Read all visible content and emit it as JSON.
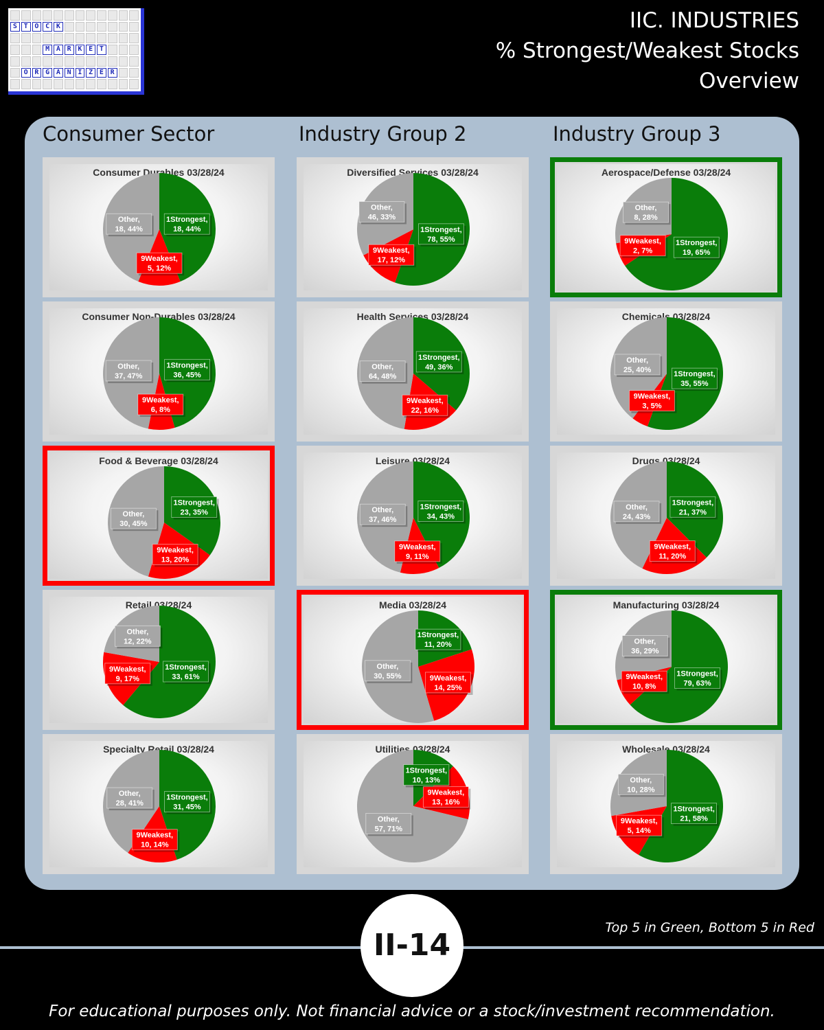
{
  "header": {
    "line1": "IIC. INDUSTRIES",
    "line2": "% Strongest/Weakest Stocks",
    "line3": "Overview"
  },
  "logo": {
    "row1": "STOCK",
    "row2": "MARKET",
    "row3": "ORGANIZER"
  },
  "columns": [
    "Consumer Sector",
    "Industry Group 2",
    "Industry Group 3"
  ],
  "footer": {
    "page_badge": "II-14",
    "legend_note": "Top 5 in Green, Bottom 5 in Red",
    "disclaimer": "For educational purposes only. Not financial advice or a stock/investment recommendation."
  },
  "colors": {
    "strongest": "#0a7d0a",
    "weakest": "#ff0000",
    "other": "#a6a6a6",
    "top5_border": "#0a7d0a",
    "bottom5_border": "#ff0000"
  },
  "chart_data": [
    {
      "type": "pie",
      "title": "Consumer Durables 03/28/24",
      "highlight": "none",
      "series": [
        {
          "name": "1Strongest",
          "value": 18,
          "pct": "44%"
        },
        {
          "name": "9Weakest",
          "value": 5,
          "pct": "12%"
        },
        {
          "name": "Other",
          "value": 18,
          "pct": "44%"
        }
      ]
    },
    {
      "type": "pie",
      "title": "Diversified Services 03/28/24",
      "highlight": "none",
      "series": [
        {
          "name": "1Strongest",
          "value": 78,
          "pct": "55%"
        },
        {
          "name": "9Weakest",
          "value": 17,
          "pct": "12%"
        },
        {
          "name": "Other",
          "value": 46,
          "pct": "33%"
        }
      ]
    },
    {
      "type": "pie",
      "title": "Aerospace/Defense 03/28/24",
      "highlight": "top5",
      "series": [
        {
          "name": "1Strongest",
          "value": 19,
          "pct": "65%"
        },
        {
          "name": "9Weakest",
          "value": 2,
          "pct": "7%"
        },
        {
          "name": "Other",
          "value": 8,
          "pct": "28%"
        }
      ]
    },
    {
      "type": "pie",
      "title": "Consumer Non-Durables 03/28/24",
      "highlight": "none",
      "series": [
        {
          "name": "1Strongest",
          "value": 36,
          "pct": "45%"
        },
        {
          "name": "9Weakest",
          "value": 6,
          "pct": "8%"
        },
        {
          "name": "Other",
          "value": 37,
          "pct": "47%"
        }
      ]
    },
    {
      "type": "pie",
      "title": "Health Services 03/28/24",
      "highlight": "none",
      "series": [
        {
          "name": "1Strongest",
          "value": 49,
          "pct": "36%"
        },
        {
          "name": "9Weakest",
          "value": 22,
          "pct": "16%"
        },
        {
          "name": "Other",
          "value": 64,
          "pct": "48%"
        }
      ]
    },
    {
      "type": "pie",
      "title": "Chemicals 03/28/24",
      "highlight": "none",
      "series": [
        {
          "name": "1Strongest",
          "value": 35,
          "pct": "55%"
        },
        {
          "name": "9Weakest",
          "value": 3,
          "pct": "5%"
        },
        {
          "name": "Other",
          "value": 25,
          "pct": "40%"
        }
      ]
    },
    {
      "type": "pie",
      "title": "Food & Beverage 03/28/24",
      "highlight": "bottom5",
      "series": [
        {
          "name": "1Strongest",
          "value": 23,
          "pct": "35%"
        },
        {
          "name": "9Weakest",
          "value": 13,
          "pct": "20%"
        },
        {
          "name": "Other",
          "value": 30,
          "pct": "45%"
        }
      ]
    },
    {
      "type": "pie",
      "title": "Leisure 03/28/24",
      "highlight": "none",
      "series": [
        {
          "name": "1Strongest",
          "value": 34,
          "pct": "43%"
        },
        {
          "name": "9Weakest",
          "value": 9,
          "pct": "11%"
        },
        {
          "name": "Other",
          "value": 37,
          "pct": "46%"
        }
      ]
    },
    {
      "type": "pie",
      "title": "Drugs 03/28/24",
      "highlight": "none",
      "series": [
        {
          "name": "1Strongest",
          "value": 21,
          "pct": "37%"
        },
        {
          "name": "9Weakest",
          "value": 11,
          "pct": "20%"
        },
        {
          "name": "Other",
          "value": 24,
          "pct": "43%"
        }
      ]
    },
    {
      "type": "pie",
      "title": "Retail 03/28/24",
      "highlight": "none",
      "series": [
        {
          "name": "1Strongest",
          "value": 33,
          "pct": "61%"
        },
        {
          "name": "9Weakest",
          "value": 9,
          "pct": "17%"
        },
        {
          "name": "Other",
          "value": 12,
          "pct": "22%"
        }
      ]
    },
    {
      "type": "pie",
      "title": "Media 03/28/24",
      "highlight": "bottom5",
      "series": [
        {
          "name": "1Strongest",
          "value": 11,
          "pct": "20%"
        },
        {
          "name": "9Weakest",
          "value": 14,
          "pct": "25%"
        },
        {
          "name": "Other",
          "value": 30,
          "pct": "55%"
        }
      ]
    },
    {
      "type": "pie",
      "title": "Manufacturing 03/28/24",
      "highlight": "top5",
      "series": [
        {
          "name": "1Strongest",
          "value": 79,
          "pct": "63%"
        },
        {
          "name": "9Weakest",
          "value": 10,
          "pct": "8%"
        },
        {
          "name": "Other",
          "value": 36,
          "pct": "29%"
        }
      ]
    },
    {
      "type": "pie",
      "title": "Specialty Retail 03/28/24",
      "highlight": "none",
      "series": [
        {
          "name": "1Strongest",
          "value": 31,
          "pct": "45%"
        },
        {
          "name": "9Weakest",
          "value": 10,
          "pct": "14%"
        },
        {
          "name": "Other",
          "value": 28,
          "pct": "41%"
        }
      ]
    },
    {
      "type": "pie",
      "title": "Utilities 03/28/24",
      "highlight": "none",
      "series": [
        {
          "name": "1Strongest",
          "value": 10,
          "pct": "13%"
        },
        {
          "name": "9Weakest",
          "value": 13,
          "pct": "16%"
        },
        {
          "name": "Other",
          "value": 57,
          "pct": "71%"
        }
      ]
    },
    {
      "type": "pie",
      "title": "Wholesale 03/28/24",
      "highlight": "none",
      "series": [
        {
          "name": "1Strongest",
          "value": 21,
          "pct": "58%"
        },
        {
          "name": "9Weakest",
          "value": 5,
          "pct": "14%"
        },
        {
          "name": "Other",
          "value": 10,
          "pct": "28%"
        }
      ]
    }
  ]
}
